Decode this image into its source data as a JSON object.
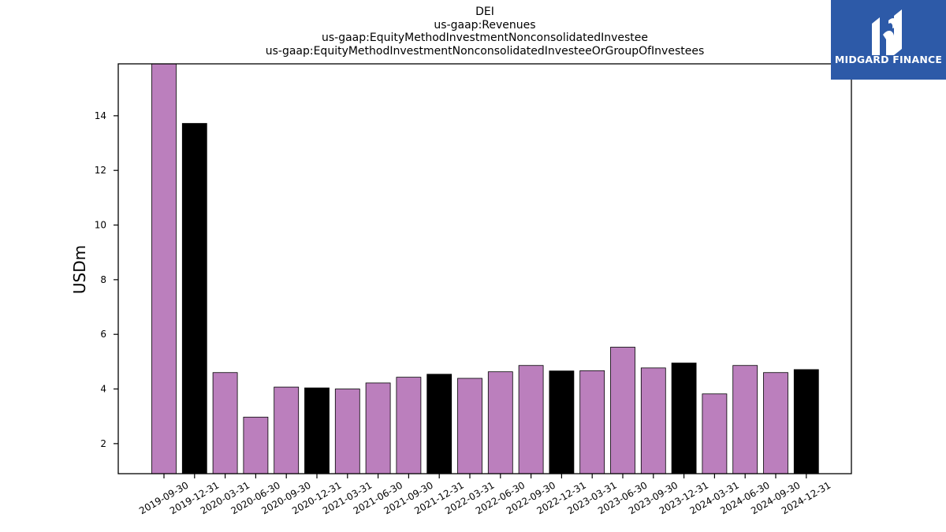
{
  "chart_data": {
    "type": "bar",
    "title_lines": [
      "DEI",
      "us-gaap:Revenues",
      "us-gaap:EquityMethodInvestmentNonconsolidatedInvestee",
      "us-gaap:EquityMethodInvestmentNonconsolidatedInvesteeOrGroupOfInvestees"
    ],
    "ylabel": "USDm",
    "xlabel": "",
    "ylim": [
      0.9,
      15.9
    ],
    "yticks": [
      2,
      4,
      6,
      8,
      10,
      12,
      14
    ],
    "grid": false,
    "categories": [
      "2019-09-30",
      "2019-12-31",
      "2020-03-31",
      "2020-06-30",
      "2020-09-30",
      "2020-12-31",
      "2021-03-31",
      "2021-06-30",
      "2021-09-30",
      "2021-12-31",
      "2022-03-31",
      "2022-06-30",
      "2022-09-30",
      "2022-12-31",
      "2023-03-31",
      "2023-06-30",
      "2023-09-30",
      "2023-12-31",
      "2024-03-31",
      "2024-06-30",
      "2024-09-30",
      "2024-12-31"
    ],
    "values": [
      16.0,
      13.72,
      4.6,
      2.97,
      4.07,
      4.04,
      4.0,
      4.22,
      4.43,
      4.54,
      4.39,
      4.63,
      4.86,
      4.66,
      4.67,
      5.53,
      4.77,
      4.95,
      3.82,
      4.86,
      4.6,
      4.71
    ],
    "bar_colors": [
      "#bb7fbd",
      "#000000",
      "#bb7fbd",
      "#bb7fbd",
      "#bb7fbd",
      "#000000",
      "#bb7fbd",
      "#bb7fbd",
      "#bb7fbd",
      "#000000",
      "#bb7fbd",
      "#bb7fbd",
      "#bb7fbd",
      "#000000",
      "#bb7fbd",
      "#bb7fbd",
      "#bb7fbd",
      "#000000",
      "#bb7fbd",
      "#bb7fbd",
      "#bb7fbd",
      "#000000"
    ]
  },
  "logo": {
    "text": "MIDGARD FINANCE",
    "background": "#2d5aa8",
    "icon": "midgard-logo-icon"
  }
}
